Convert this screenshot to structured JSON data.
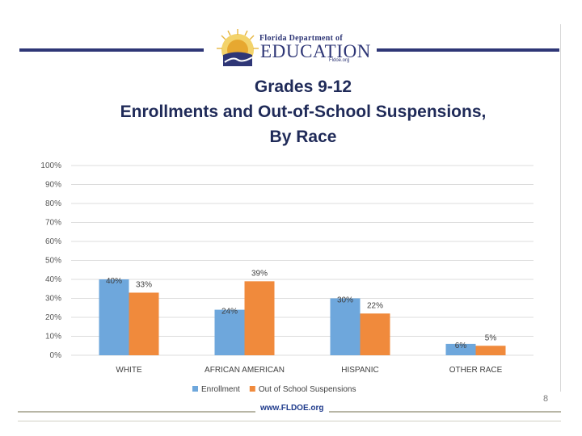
{
  "header": {
    "logo_line1": "Florida Department of",
    "logo_line2": "EDUCATION",
    "logo_line3": "Fldoe.org"
  },
  "title_lines": [
    "Grades 9-12",
    "Enrollments and Out-of-School Suspensions,",
    "By Race"
  ],
  "chart_data": {
    "type": "bar",
    "title": "Grades 9-12 Enrollments and Out-of-School Suspensions, By Race",
    "categories": [
      "WHITE",
      "AFRICAN AMERICAN",
      "HISPANIC",
      "OTHER RACE"
    ],
    "series": [
      {
        "name": "Enrollment",
        "values": [
          40,
          24,
          30,
          6
        ],
        "labels": [
          "40%",
          "24%",
          "30%",
          "6%"
        ],
        "color": "#6ea7dc"
      },
      {
        "name": "Out of School Suspensions",
        "values": [
          33,
          39,
          22,
          5
        ],
        "labels": [
          "33%",
          "39%",
          "22%",
          "5%"
        ],
        "color": "#f08a3c"
      }
    ],
    "y_ticks": [
      "0%",
      "10%",
      "20%",
      "30%",
      "40%",
      "50%",
      "60%",
      "70%",
      "80%",
      "90%",
      "100%"
    ],
    "ylim": [
      0,
      100
    ],
    "grid": true,
    "legend_position": "bottom"
  },
  "footer": {
    "url": "www.FLDOE.org",
    "page_number": "8"
  },
  "colors": {
    "navy": "#2e3676",
    "enrollment": "#6ea7dc",
    "suspensions": "#f08a3c"
  }
}
